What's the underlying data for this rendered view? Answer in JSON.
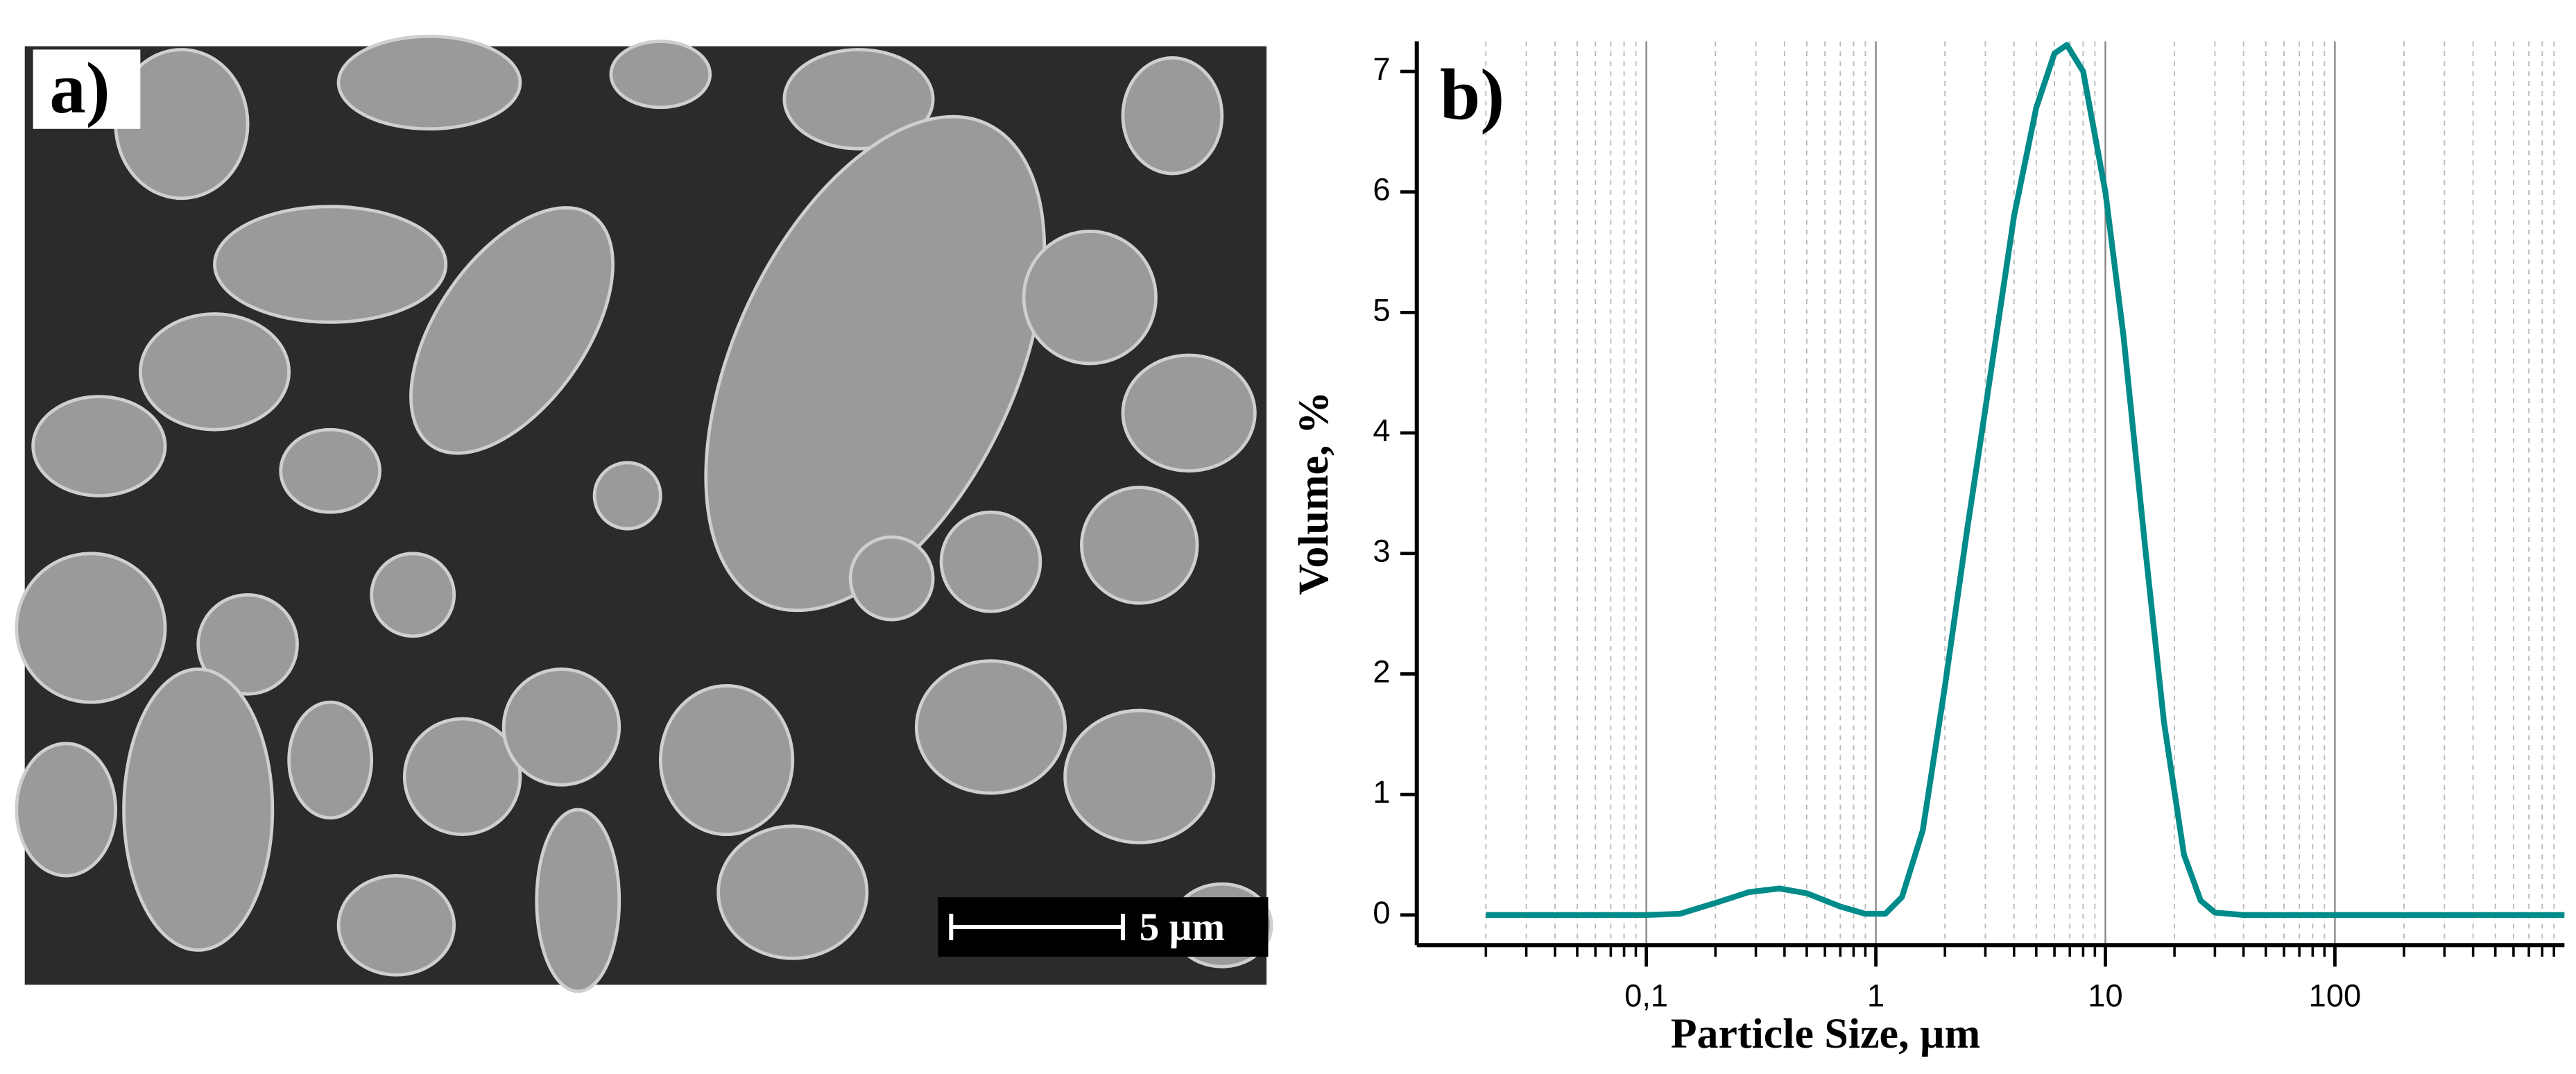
{
  "panel_a": {
    "label": "a)",
    "scale_bar": "5 µm"
  },
  "chart_data": {
    "type": "line",
    "panel_label": "b)",
    "x_label": "Particle Size, µm",
    "y_label": "Volume, %",
    "x": [
      0.02,
      0.1,
      0.14,
      0.2,
      0.28,
      0.38,
      0.5,
      0.7,
      0.9,
      1.1,
      1.3,
      1.6,
      2,
      2.5,
      3,
      4,
      5,
      6,
      6.8,
      8,
      10,
      12,
      15,
      18,
      22,
      26,
      30,
      40,
      100,
      1000
    ],
    "series": [
      {
        "color": "#008b8b",
        "values": [
          0,
          0,
          0.01,
          0.1,
          0.19,
          0.22,
          0.18,
          0.07,
          0.01,
          0.01,
          0.15,
          0.7,
          1.9,
          3.2,
          4.2,
          5.8,
          6.7,
          7.15,
          7.22,
          7.0,
          6.0,
          4.8,
          3.0,
          1.6,
          0.5,
          0.12,
          0.02,
          0,
          0,
          0
        ]
      }
    ],
    "xlim": [
      0.01,
      1000
    ],
    "ylim": [
      -0.25,
      7.25
    ],
    "xscale": "log",
    "xticks": [
      {
        "value": 0.1,
        "label": "0,1"
      },
      1,
      10,
      100
    ],
    "yticks": [
      0,
      1,
      2,
      3,
      4,
      5,
      6,
      7
    ],
    "grid": true,
    "minor_grid": true
  }
}
